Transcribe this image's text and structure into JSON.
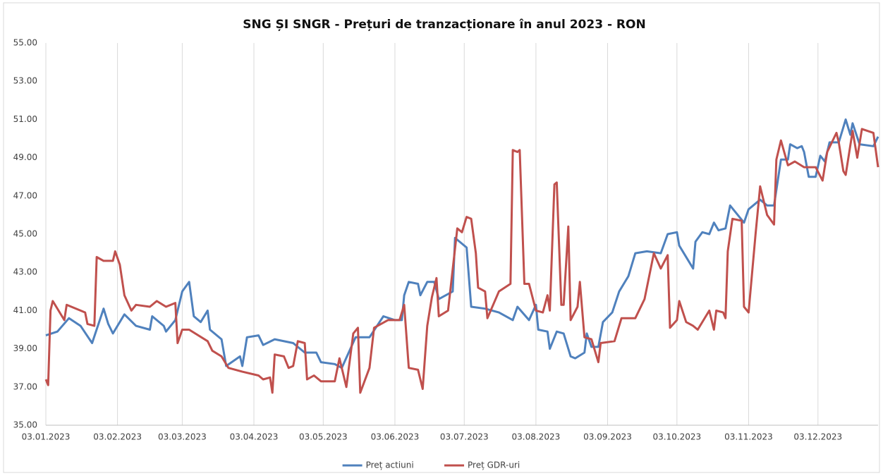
{
  "chart_data": {
    "type": "line",
    "title": "SNG ȘI SNGR - Prețuri de tranzacționare în anul 2023 - RON",
    "xlim": [
      "03.01.2023",
      "29.12.2023"
    ],
    "xticks": [
      "03.01.2023",
      "03.02.2023",
      "03.03.2023",
      "03.04.2023",
      "03.05.2023",
      "03.06.2023",
      "03.07.2023",
      "03.08.2023",
      "03.09.2023",
      "03.10.2023",
      "03.11.2023",
      "03.12.2023"
    ],
    "ylim": [
      35,
      55
    ],
    "yticks": [
      {
        "value": 35,
        "label": "35.00"
      },
      {
        "value": 37,
        "label": "37.00"
      },
      {
        "value": 39,
        "label": "39.00"
      },
      {
        "value": 41,
        "label": "41.00"
      },
      {
        "value": 43,
        "label": "43.00"
      },
      {
        "value": 45,
        "label": "45.00"
      },
      {
        "value": 47,
        "label": "47.00"
      },
      {
        "value": 49,
        "label": "49.00"
      },
      {
        "value": 51,
        "label": "51.00"
      },
      {
        "value": 53,
        "label": "53.00"
      },
      {
        "value": 55,
        "label": "55.00"
      }
    ],
    "grid": "x",
    "legend": "bottom",
    "series": [
      {
        "name": "Preț actiuni",
        "color": "#4f81bd",
        "x": [
          "03.01.2023",
          "08.01.2023",
          "13.01.2023",
          "18.01.2023",
          "23.01.2023",
          "28.01.2023",
          "30.01.2023",
          "01.02.2023",
          "06.02.2023",
          "11.02.2023",
          "17.02.2023",
          "18.02.2023",
          "23.02.2023",
          "24.02.2023",
          "28.02.2023",
          "03.03.2023",
          "06.03.2023",
          "08.03.2023",
          "11.03.2023",
          "14.03.2023",
          "15.03.2023",
          "20.03.2023",
          "22.03.2023",
          "28.03.2023",
          "29.03.2023",
          "31.03.2023",
          "05.04.2023",
          "07.04.2023",
          "12.04.2023",
          "20.04.2023",
          "25.04.2023",
          "30.04.2023",
          "02.05.2023",
          "08.05.2023",
          "11.05.2023",
          "17.05.2023",
          "23.05.2023",
          "29.05.2023",
          "03.06.2023",
          "06.06.2023",
          "07.06.2023",
          "09.06.2023",
          "13.06.2023",
          "14.06.2023",
          "17.06.2023",
          "20.06.2023",
          "22.06.2023",
          "28.06.2023",
          "29.06.2023",
          "04.07.2023",
          "06.07.2023",
          "12.07.2023",
          "18.07.2023",
          "24.07.2023",
          "26.07.2023",
          "31.07.2023",
          "03.08.2023",
          "04.08.2023",
          "08.08.2023",
          "09.08.2023",
          "12.08.2023",
          "15.08.2023",
          "18.08.2023",
          "20.08.2023",
          "24.08.2023",
          "25.08.2023",
          "27.08.2023",
          "30.08.2023",
          "01.09.2023",
          "05.09.2023",
          "08.09.2023",
          "12.09.2023",
          "15.09.2023",
          "20.09.2023",
          "26.09.2023",
          "29.09.2023",
          "03.10.2023",
          "04.10.2023",
          "10.10.2023",
          "11.10.2023",
          "14.10.2023",
          "17.10.2023",
          "19.10.2023",
          "21.10.2023",
          "24.10.2023",
          "26.10.2023",
          "01.11.2023",
          "03.11.2023",
          "08.11.2023",
          "11.11.2023",
          "14.11.2023",
          "17.11.2023",
          "20.11.2023",
          "21.11.2023",
          "24.11.2023",
          "26.11.2023",
          "27.11.2023",
          "29.11.2023",
          "02.12.2023",
          "04.12.2023",
          "06.12.2023",
          "08.12.2023",
          "12.12.2023",
          "15.12.2023",
          "17.12.2023",
          "18.12.2023",
          "21.12.2023",
          "27.12.2023",
          "29.12.2023"
        ],
        "values": [
          39.7,
          39.9,
          40.6,
          40.2,
          39.3,
          41.1,
          40.3,
          39.8,
          40.8,
          40.2,
          40.0,
          40.7,
          40.2,
          39.9,
          40.5,
          42.0,
          42.5,
          40.7,
          40.4,
          41.0,
          40.0,
          39.5,
          38.1,
          38.6,
          38.1,
          39.6,
          39.7,
          39.2,
          39.5,
          39.3,
          38.8,
          38.8,
          38.3,
          38.2,
          38.0,
          39.6,
          39.6,
          40.7,
          40.5,
          40.5,
          41.8,
          42.5,
          42.4,
          41.8,
          42.5,
          42.5,
          41.6,
          42.0,
          44.8,
          44.3,
          41.2,
          41.1,
          40.9,
          40.5,
          41.2,
          40.5,
          41.3,
          40.0,
          39.9,
          39.0,
          39.9,
          39.8,
          38.6,
          38.5,
          38.8,
          39.8,
          39.1,
          39.1,
          40.4,
          40.9,
          42.0,
          42.8,
          44.0,
          44.1,
          44.0,
          45.0,
          45.1,
          44.4,
          43.2,
          44.6,
          45.1,
          45.0,
          45.6,
          45.2,
          45.3,
          46.5,
          45.6,
          46.3,
          46.8,
          46.5,
          46.5,
          48.9,
          48.9,
          49.7,
          49.5,
          49.6,
          49.3,
          48.0,
          48.0,
          49.1,
          48.8,
          49.8,
          49.8,
          51.0,
          50.2,
          50.8,
          49.7,
          49.6,
          50.1
        ]
      },
      {
        "name": "Preț GDR-uri",
        "color": "#c0504d",
        "x": [
          "03.01.2023",
          "04.01.2023",
          "05.01.2023",
          "06.01.2023",
          "11.01.2023",
          "12.01.2023",
          "18.01.2023",
          "20.01.2023",
          "21.01.2023",
          "24.01.2023",
          "25.01.2023",
          "28.01.2023",
          "01.02.2023",
          "02.02.2023",
          "04.02.2023",
          "06.02.2023",
          "09.02.2023",
          "11.02.2023",
          "17.02.2023",
          "20.02.2023",
          "24.02.2023",
          "28.02.2023",
          "01.03.2023",
          "03.03.2023",
          "06.03.2023",
          "14.03.2023",
          "16.03.2023",
          "20.03.2023",
          "23.03.2023",
          "29.03.2023",
          "05.04.2023",
          "07.04.2023",
          "10.04.2023",
          "11.04.2023",
          "12.04.2023",
          "16.04.2023",
          "18.04.2023",
          "20.04.2023",
          "22.04.2023",
          "25.04.2023",
          "26.04.2023",
          "29.04.2023",
          "02.05.2023",
          "08.05.2023",
          "10.05.2023",
          "13.05.2023",
          "16.05.2023",
          "18.05.2023",
          "19.05.2023",
          "23.05.2023",
          "25.05.2023",
          "31.05.2023",
          "05.06.2023",
          "07.06.2023",
          "09.06.2023",
          "13.06.2023",
          "15.06.2023",
          "17.06.2023",
          "19.06.2023",
          "21.06.2023",
          "22.06.2023",
          "26.06.2023",
          "30.06.2023",
          "02.07.2023",
          "04.07.2023",
          "06.07.2023",
          "08.07.2023",
          "09.07.2023",
          "12.07.2023",
          "13.07.2023",
          "18.07.2023",
          "23.07.2023",
          "24.07.2023",
          "26.07.2023",
          "27.07.2023",
          "29.07.2023",
          "31.07.2023",
          "03.08.2023",
          "06.08.2023",
          "08.08.2023",
          "09.08.2023",
          "11.08.2023",
          "12.08.2023",
          "14.08.2023",
          "15.08.2023",
          "17.08.2023",
          "18.08.2023",
          "21.08.2023",
          "22.08.2023",
          "24.08.2023",
          "27.08.2023",
          "30.08.2023",
          "31.08.2023",
          "06.09.2023",
          "09.09.2023",
          "15.09.2023",
          "19.09.2023",
          "21.09.2023",
          "23.09.2023",
          "26.09.2023",
          "29.09.2023",
          "30.09.2023",
          "03.10.2023",
          "04.10.2023",
          "07.10.2023",
          "10.10.2023",
          "12.10.2023",
          "17.10.2023",
          "19.10.2023",
          "20.10.2023",
          "23.10.2023",
          "24.10.2023",
          "25.10.2023",
          "27.10.2023",
          "31.10.2023",
          "01.11.2023",
          "03.11.2023",
          "06.11.2023",
          "08.11.2023",
          "11.11.2023",
          "14.11.2023",
          "15.11.2023",
          "17.11.2023",
          "20.11.2023",
          "23.11.2023",
          "27.11.2023",
          "02.12.2023",
          "05.12.2023",
          "07.12.2023",
          "11.12.2023",
          "12.12.2023",
          "14.12.2023",
          "15.12.2023",
          "18.12.2023",
          "20.12.2023",
          "22.12.2023",
          "27.12.2023",
          "29.12.2023"
        ],
        "values": [
          37.4,
          37.1,
          41.0,
          41.5,
          40.5,
          41.3,
          41.0,
          40.9,
          40.3,
          40.2,
          43.8,
          43.6,
          43.6,
          44.1,
          43.4,
          41.8,
          41.0,
          41.3,
          41.2,
          41.5,
          41.2,
          41.4,
          39.3,
          40.0,
          40.0,
          39.4,
          38.9,
          38.6,
          38.0,
          37.8,
          37.6,
          37.4,
          37.5,
          36.7,
          38.7,
          38.6,
          38.0,
          38.1,
          39.4,
          39.3,
          37.4,
          37.6,
          37.3,
          37.3,
          38.5,
          37.0,
          39.8,
          40.1,
          36.7,
          38.0,
          40.1,
          40.5,
          40.5,
          41.3,
          38.0,
          37.9,
          36.9,
          40.2,
          41.7,
          42.7,
          40.7,
          41.0,
          45.3,
          45.1,
          45.9,
          45.8,
          44.0,
          42.2,
          42.0,
          40.6,
          42.0,
          42.4,
          49.4,
          49.3,
          49.4,
          42.4,
          42.4,
          41.0,
          40.9,
          41.8,
          41.0,
          47.6,
          47.7,
          41.3,
          41.3,
          45.4,
          40.5,
          41.2,
          42.5,
          39.6,
          39.5,
          38.3,
          39.3,
          39.4,
          40.6,
          40.6,
          41.6,
          42.8,
          44.0,
          43.2,
          43.9,
          40.1,
          40.5,
          41.5,
          40.4,
          40.2,
          40.0,
          41.0,
          40.0,
          41.0,
          40.9,
          40.6,
          44.1,
          45.8,
          45.7,
          41.2,
          40.9,
          45.0,
          47.5,
          46.0,
          45.5,
          48.9,
          49.9,
          48.6,
          48.8,
          48.5,
          48.5,
          47.8,
          49.3,
          50.3,
          49.8,
          48.3,
          48.1,
          50.4,
          49.0,
          50.5,
          50.3,
          48.5
        ]
      }
    ]
  }
}
